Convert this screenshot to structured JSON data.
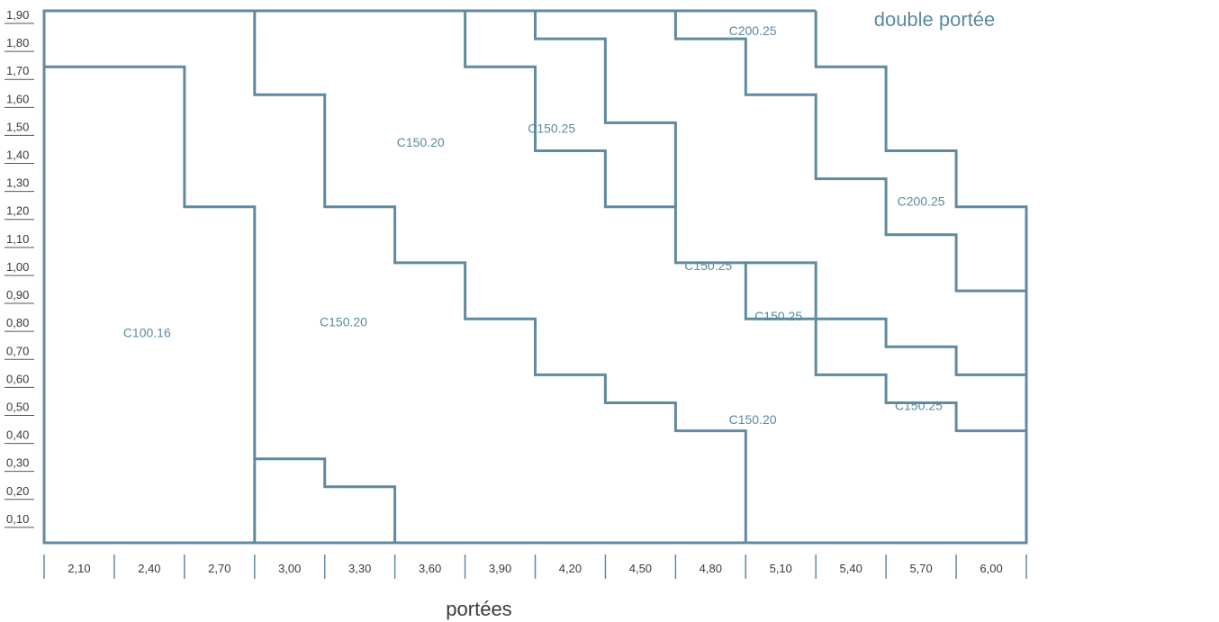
{
  "chart_data": {
    "type": "area",
    "title": "double portée",
    "xlabel": "portées",
    "ylabel": "",
    "x_categories": [
      "2,10",
      "2,40",
      "2,70",
      "3,00",
      "3,30",
      "3,60",
      "3,90",
      "4,20",
      "4,50",
      "4,80",
      "5,10",
      "5,40",
      "5,70",
      "6,00"
    ],
    "x_category_values": [
      2.1,
      2.4,
      2.7,
      3.0,
      3.3,
      3.6,
      3.9,
      4.2,
      4.5,
      4.8,
      5.1,
      5.4,
      5.7,
      6.0
    ],
    "x_step": 0.3,
    "y_ticks": [
      "0,10",
      "0,20",
      "0,30",
      "0,40",
      "0,50",
      "0,60",
      "0,70",
      "0,80",
      "0,90",
      "1,00",
      "1,10",
      "1,20",
      "1,30",
      "1,40",
      "1,50",
      "1,60",
      "1,70",
      "1,80",
      "1,90"
    ],
    "y_tick_values": [
      0.1,
      0.2,
      0.3,
      0.4,
      0.5,
      0.6,
      0.7,
      0.8,
      0.9,
      1.0,
      1.1,
      1.2,
      1.3,
      1.4,
      1.5,
      1.6,
      1.7,
      1.8,
      1.9
    ],
    "ylim": [
      0.0,
      1.9
    ],
    "xlim": [
      1.95,
      6.15
    ],
    "boundaries": [
      {
        "points": [
          [
            1.95,
            1.7
          ],
          [
            2.55,
            1.7
          ],
          [
            2.55,
            1.2
          ],
          [
            2.85,
            1.2
          ],
          [
            2.85,
            0.0
          ]
        ]
      },
      {
        "points": [
          [
            2.85,
            1.9
          ],
          [
            2.85,
            1.6
          ],
          [
            3.15,
            1.6
          ],
          [
            3.15,
            1.2
          ],
          [
            3.45,
            1.2
          ],
          [
            3.45,
            1.0
          ],
          [
            3.75,
            1.0
          ],
          [
            3.75,
            0.8
          ],
          [
            4.05,
            0.8
          ],
          [
            4.05,
            0.6
          ],
          [
            4.35,
            0.6
          ],
          [
            4.35,
            0.5
          ],
          [
            4.65,
            0.5
          ],
          [
            4.65,
            0.4
          ],
          [
            4.95,
            0.4
          ],
          [
            4.95,
            0.0
          ]
        ]
      },
      {
        "points": [
          [
            2.85,
            0.3
          ],
          [
            3.15,
            0.3
          ],
          [
            3.15,
            0.2
          ],
          [
            3.45,
            0.2
          ],
          [
            3.45,
            0.0
          ]
        ]
      },
      {
        "points": [
          [
            3.75,
            1.9
          ],
          [
            3.75,
            1.7
          ],
          [
            4.05,
            1.7
          ],
          [
            4.05,
            1.4
          ],
          [
            4.35,
            1.4
          ],
          [
            4.35,
            1.2
          ],
          [
            4.65,
            1.2
          ],
          [
            4.65,
            1.0
          ],
          [
            4.95,
            1.0
          ],
          [
            4.95,
            0.8
          ],
          [
            5.25,
            0.8
          ],
          [
            5.25,
            0.6
          ],
          [
            5.55,
            0.6
          ],
          [
            5.55,
            0.5
          ],
          [
            5.85,
            0.5
          ],
          [
            5.85,
            0.4
          ],
          [
            6.15,
            0.4
          ]
        ]
      },
      {
        "points": [
          [
            4.05,
            1.9
          ],
          [
            4.05,
            1.8
          ],
          [
            4.35,
            1.8
          ],
          [
            4.35,
            1.5
          ],
          [
            4.65,
            1.5
          ],
          [
            4.65,
            1.2
          ]
        ]
      },
      {
        "points": [
          [
            4.65,
            1.9
          ],
          [
            4.65,
            1.8
          ],
          [
            4.95,
            1.8
          ],
          [
            4.95,
            1.6
          ],
          [
            5.25,
            1.6
          ],
          [
            5.25,
            1.3
          ],
          [
            5.55,
            1.3
          ],
          [
            5.55,
            1.1
          ],
          [
            5.85,
            1.1
          ],
          [
            5.85,
            0.9
          ],
          [
            6.15,
            0.9
          ]
        ]
      },
      {
        "points": [
          [
            4.95,
            1.0
          ],
          [
            5.25,
            1.0
          ],
          [
            5.25,
            0.8
          ],
          [
            5.55,
            0.8
          ],
          [
            5.55,
            0.7
          ],
          [
            5.85,
            0.7
          ],
          [
            5.85,
            0.6
          ],
          [
            6.15,
            0.6
          ]
        ]
      },
      {
        "points": [
          [
            5.25,
            1.9
          ],
          [
            5.25,
            1.7
          ],
          [
            5.55,
            1.7
          ],
          [
            5.55,
            1.4
          ],
          [
            5.85,
            1.4
          ],
          [
            5.85,
            1.2
          ],
          [
            6.15,
            1.2
          ],
          [
            6.15,
            0.0
          ]
        ]
      },
      {
        "points": [
          [
            1.95,
            1.9
          ],
          [
            5.25,
            1.9
          ]
        ]
      }
    ],
    "region_labels": [
      {
        "text": "C100.16",
        "x": 2.39,
        "y": 0.75
      },
      {
        "text": "C150.20",
        "x": 3.23,
        "y": 0.79
      },
      {
        "text": "C150.20",
        "x": 3.56,
        "y": 1.43
      },
      {
        "text": "C150.25",
        "x": 4.12,
        "y": 1.48
      },
      {
        "text": "C200.25",
        "x": 4.98,
        "y": 1.83
      },
      {
        "text": "C200.25",
        "x": 5.7,
        "y": 1.22
      },
      {
        "text": "C150.25",
        "x": 4.79,
        "y": 0.99
      },
      {
        "text": "C150.25",
        "x": 5.09,
        "y": 0.81
      },
      {
        "text": "C150.25",
        "x": 5.69,
        "y": 0.49
      },
      {
        "text": "C150.20",
        "x": 4.98,
        "y": 0.44
      }
    ],
    "grid": false,
    "legend": "none"
  }
}
